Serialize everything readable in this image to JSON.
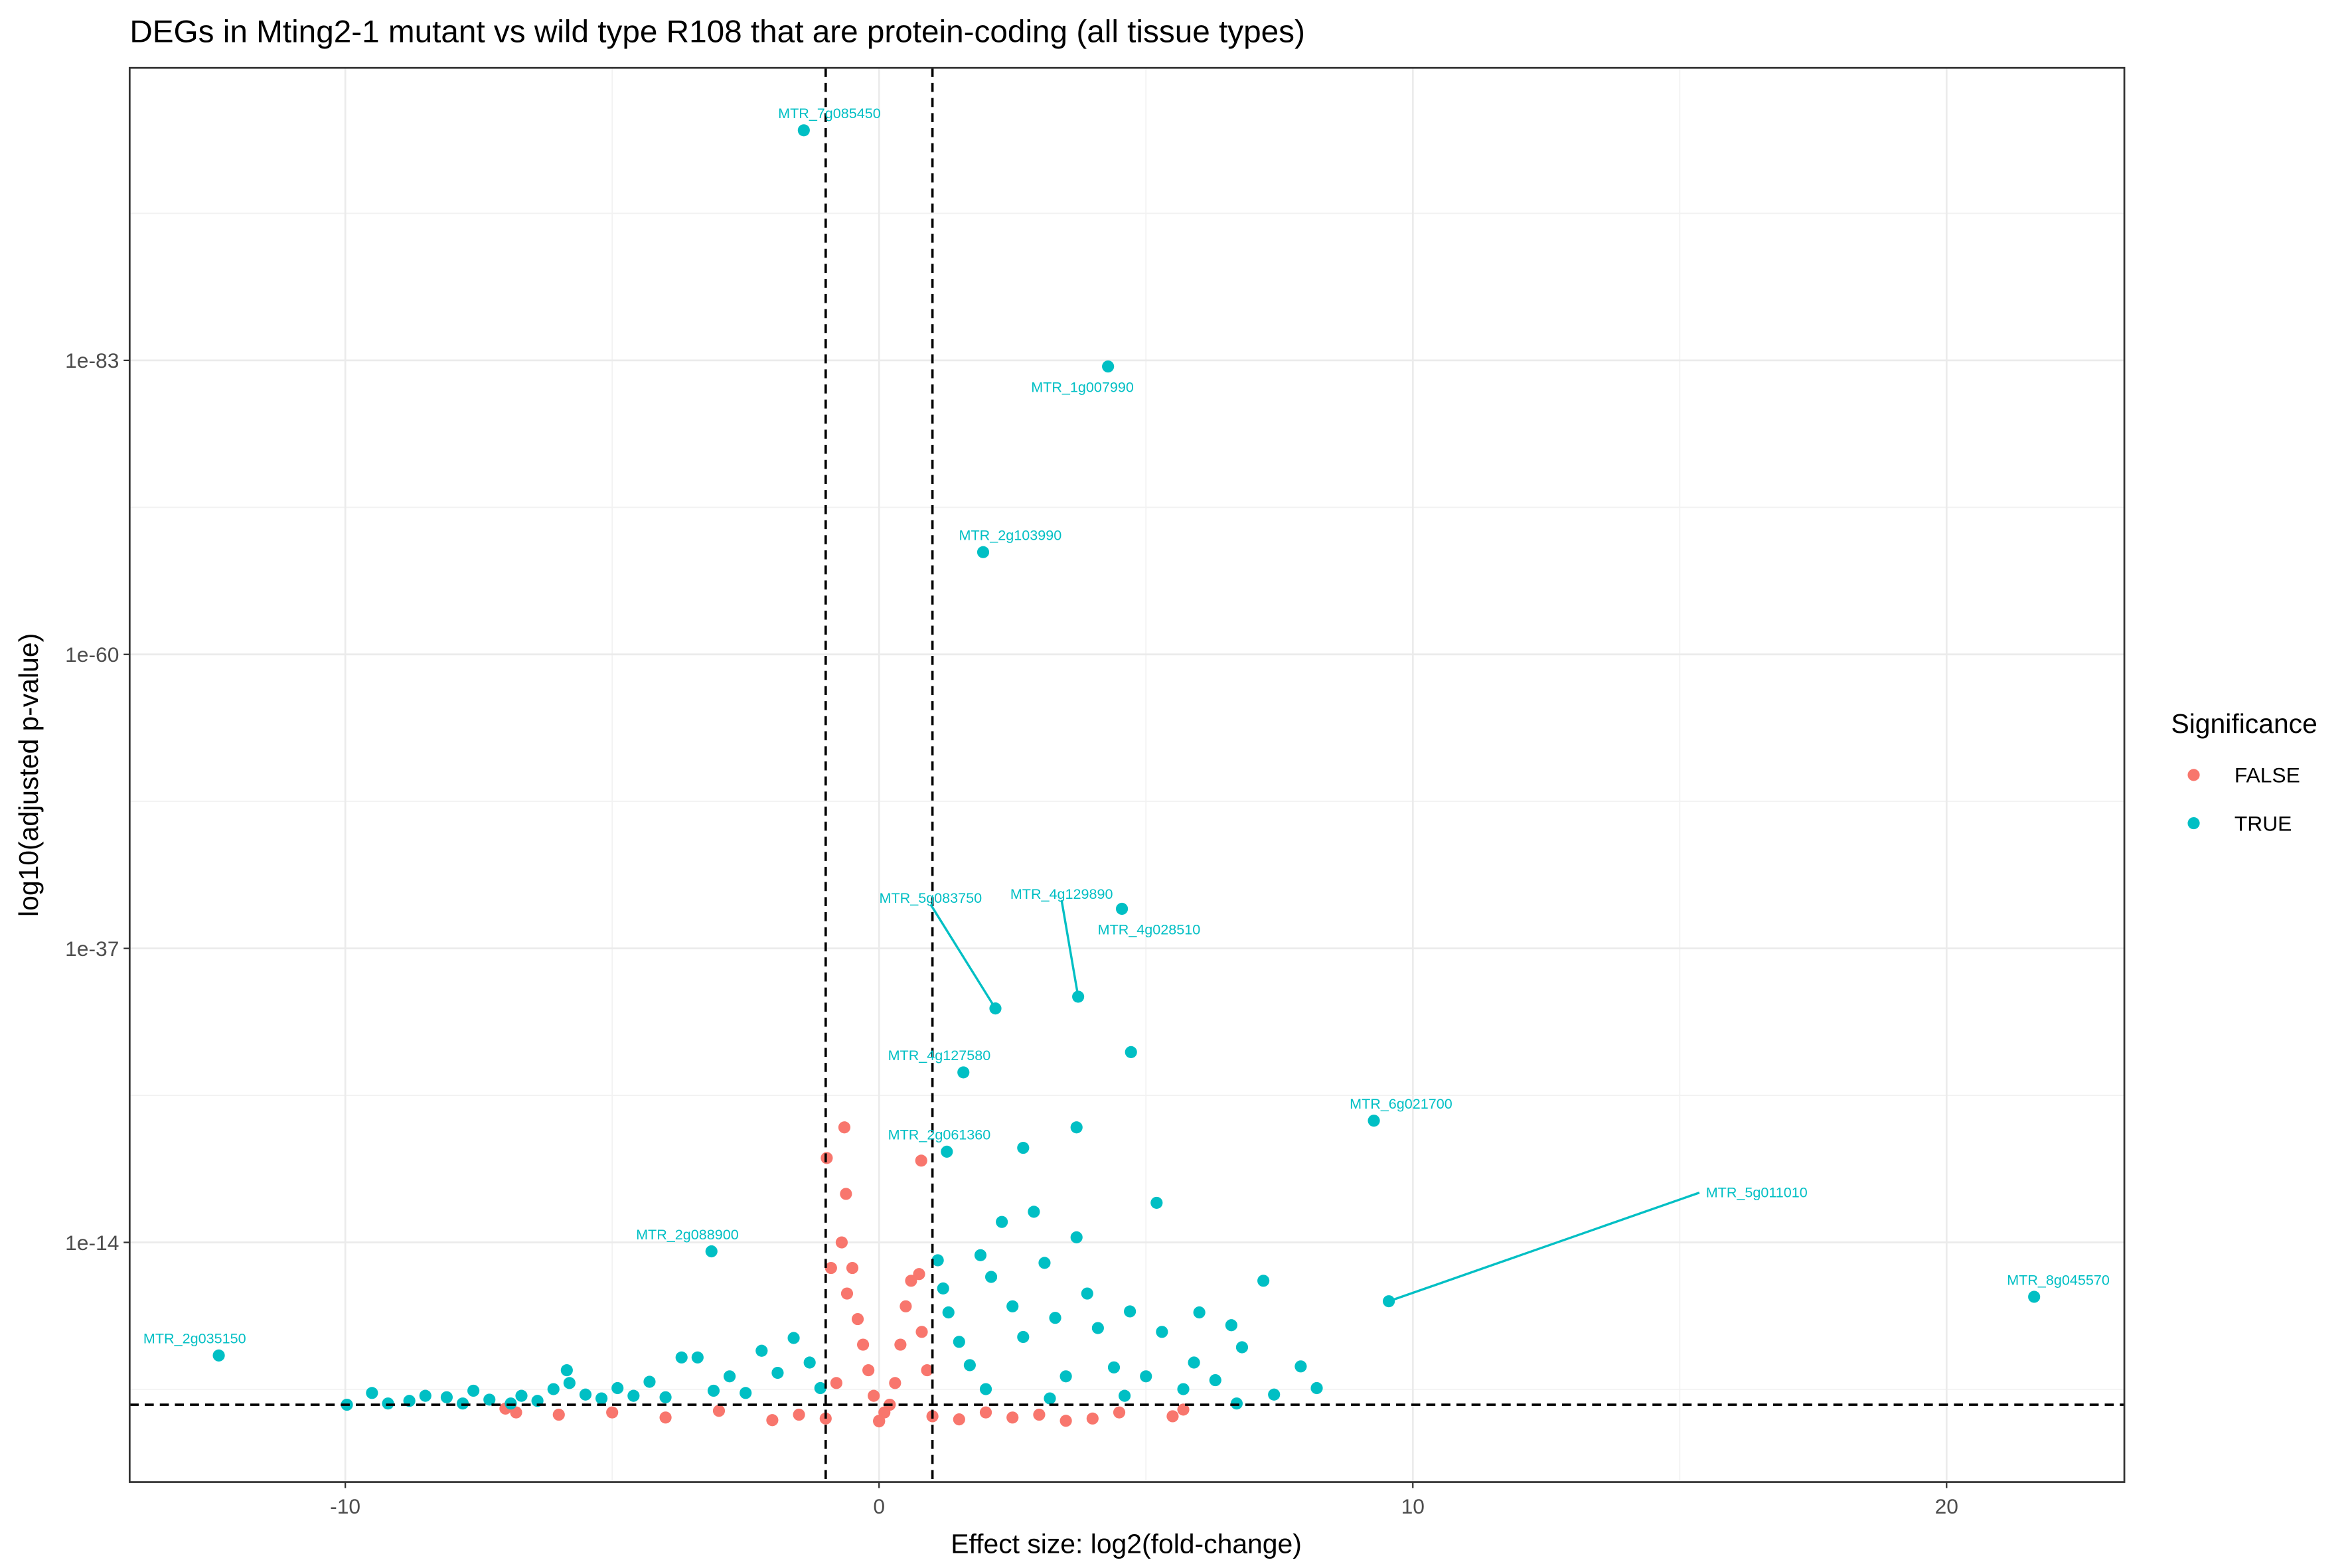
{
  "chart_data": {
    "type": "scatter",
    "title": "DEGs in Mting2-1 mutant vs wild type R108 that are protein-coding (all tissue types)",
    "x_label": "Effect size: log2(fold-change)",
    "y_label": "log10(adjusted p-value)",
    "legend_title": "Significance",
    "legend_position": "right",
    "grid": true,
    "y_log_reversed": true,
    "xlim": [
      -14.04,
      23.33
    ],
    "xticks": [
      -10,
      0,
      10,
      20
    ],
    "ylim": [
      56000,
      1.3e-106
    ],
    "yticks": [
      1e-14,
      1e-37,
      1e-60,
      1e-83
    ],
    "vlines": [
      -1,
      1
    ],
    "hline": 0.05,
    "series": [
      {
        "name": "FALSE",
        "color": "#F8766D",
        "x": [
          -0.65,
          -0.98,
          0.79,
          -0.62,
          -0.7,
          -0.5,
          -0.6,
          -0.4,
          -0.3,
          -0.2,
          -0.1,
          0.1,
          0.3,
          0.4,
          0.5,
          0.6,
          0.8,
          0.9,
          0.2,
          -0.8,
          -0.9,
          0.75,
          -7,
          -6,
          -5,
          -4,
          -3,
          -2,
          -1.5,
          -1,
          0,
          1,
          1.5,
          2,
          2.5,
          3,
          4,
          4.5,
          5.5,
          5.7,
          -6.8,
          3.5,
          0
        ],
        "y": [
          1e-23,
          2.5e-21,
          4e-21,
          1.6e-18,
          1e-14,
          1e-12,
          1e-10,
          1e-08,
          1e-06,
          0.0001,
          0.01,
          0.2,
          0.001,
          1e-06,
          1e-09,
          1e-11,
          1e-07,
          0.0001,
          0.05,
          0.001,
          1e-12,
          3e-12,
          0.1,
          0.3,
          0.2,
          0.5,
          0.15,
          0.8,
          0.3,
          0.6,
          0.9,
          0.4,
          0.7,
          0.2,
          0.5,
          0.3,
          0.6,
          0.2,
          0.4,
          0.12,
          0.2,
          0.9,
          1
        ]
      },
      {
        "name": "TRUE",
        "color": "#00BFC4",
        "x": [
          -1.41,
          4.29,
          1.95,
          2.18,
          3.73,
          4.55,
          4.72,
          1.58,
          1.27,
          9.27,
          9.55,
          21.64,
          -3.14,
          -12.37,
          -9.97,
          -9.5,
          -9.2,
          -8.8,
          -8.5,
          -8.1,
          -7.8,
          -7.6,
          -7.3,
          -6.9,
          -6.7,
          -6.4,
          -6.1,
          -5.8,
          -5.5,
          -5.2,
          -4.9,
          -4.6,
          -4.3,
          -4.0,
          -3.7,
          -3.4,
          -3.1,
          -2.8,
          -2.5,
          -2.2,
          -1.9,
          -1.6,
          -1.3,
          -1.1,
          -5.85,
          1.1,
          1.2,
          1.3,
          1.5,
          1.7,
          1.9,
          2.1,
          2.3,
          2.5,
          2.7,
          2.9,
          3.1,
          3.3,
          3.5,
          3.7,
          3.9,
          4.1,
          4.4,
          4.7,
          5.0,
          5.3,
          5.7,
          5.9,
          6.3,
          6.6,
          6.8,
          7.2,
          7.4,
          7.9,
          8.2,
          2.7,
          3.7,
          5.2,
          6.0,
          3.2,
          2.0,
          4.6,
          6.7
        ],
        "y": [
          1e-101,
          3e-83,
          1e-68,
          5e-33,
          6e-34,
          8e-41,
          1.3e-29,
          5e-28,
          8e-22,
          3e-24,
          4e-10,
          1.8e-10,
          5e-14,
          7e-06,
          0.05,
          0.006,
          0.04,
          0.025,
          0.01,
          0.013,
          0.04,
          0.004,
          0.02,
          0.04,
          0.01,
          0.025,
          0.003,
          0.001,
          0.008,
          0.016,
          0.0025,
          0.01,
          0.0008,
          0.013,
          1e-05,
          1e-05,
          0.004,
          0.0003,
          0.006,
          3e-06,
          0.00016,
          3e-07,
          2.5e-05,
          0.0025,
          0.0001,
          2.5e-13,
          4e-11,
          3e-09,
          6e-07,
          4e-05,
          1e-13,
          5e-12,
          2.5e-16,
          1e-09,
          2.5e-07,
          4e-17,
          4e-13,
          8e-09,
          0.0003,
          4e-15,
          1e-10,
          5e-08,
          6e-05,
          2.5e-09,
          0.0003,
          1e-07,
          0.003,
          2.5e-05,
          0.0006,
          3e-08,
          1.6e-06,
          1e-11,
          0.008,
          5e-05,
          0.0025,
          4e-22,
          1e-23,
          8e-18,
          3e-09,
          0.016,
          0.003,
          0.01,
          0.04
        ],
        "labels": [
          "MTR_7g085450",
          "MTR_1g007990",
          "MTR_2g103990",
          "MTR_5g083750",
          "MTR_4g129890",
          "MTR_4g028510",
          null,
          "MTR_4g127580",
          "MTR_2g061360",
          "MTR_6g021700",
          "MTR_5g011010",
          "MTR_8g045570",
          "MTR_2g088900",
          "MTR_2g035150",
          null,
          null,
          null,
          null,
          null,
          null,
          null,
          null,
          null,
          null,
          null,
          null,
          null,
          null,
          null,
          null,
          null,
          null,
          null,
          null,
          null,
          null,
          null,
          null,
          null,
          null,
          null,
          null,
          null,
          null,
          null,
          null,
          null,
          null,
          null,
          null,
          null,
          null,
          null,
          null,
          null,
          null,
          null,
          null,
          null,
          null,
          null,
          null,
          null,
          null,
          null,
          null,
          null,
          null,
          null,
          null,
          null,
          null,
          null,
          null,
          null,
          null,
          null,
          null,
          null,
          null,
          null,
          null,
          null
        ]
      }
    ]
  }
}
